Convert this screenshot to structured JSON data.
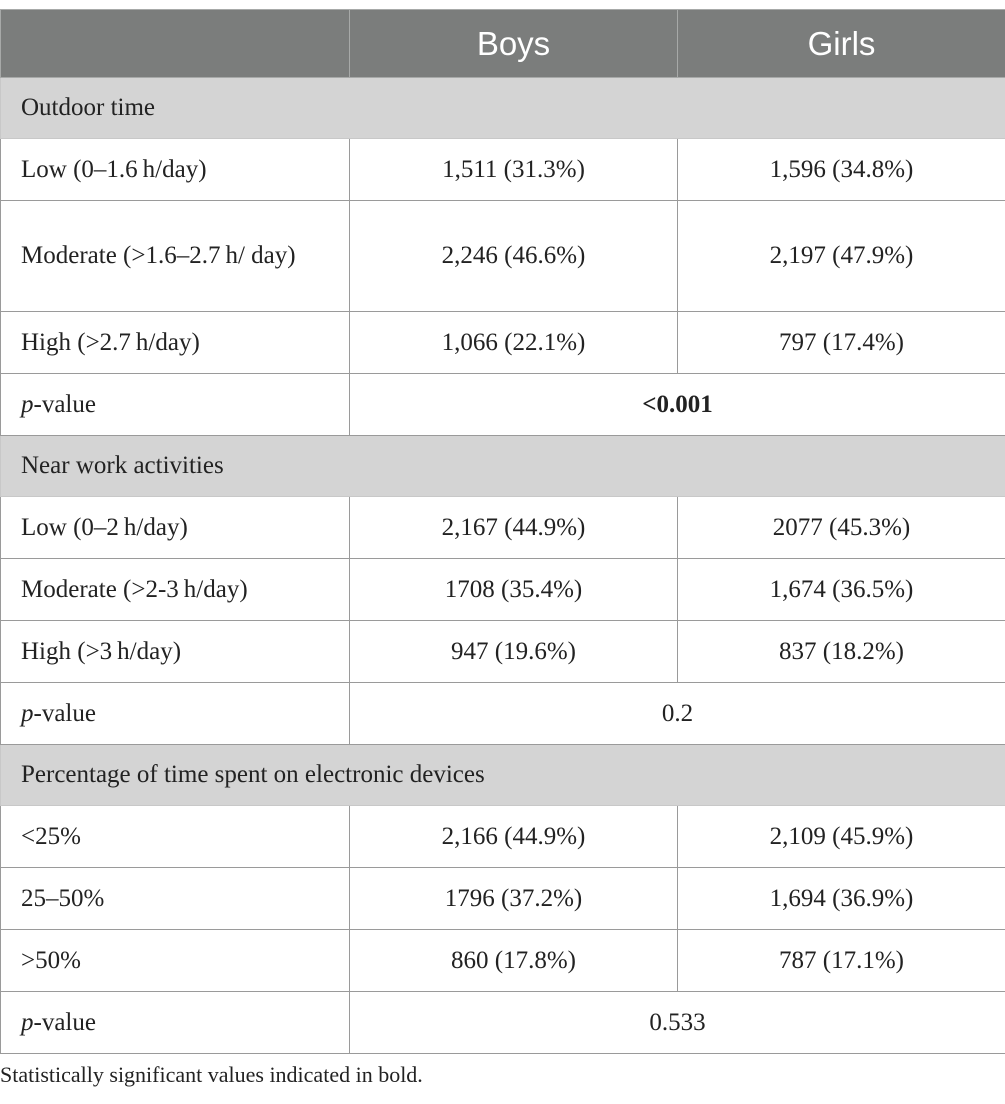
{
  "table": {
    "headers": [
      "",
      "Boys",
      "Girls"
    ],
    "sections": [
      {
        "title": "Outdoor time",
        "rows": [
          {
            "label": "Low (0–1.6 h/day)",
            "boys": "1,511 (31.3%)",
            "girls": "1,596 (34.8%)"
          },
          {
            "label": "Moderate (>1.6–2.7 h/ day)",
            "boys": "2,246 (46.6%)",
            "girls": "2,197 (47.9%)"
          },
          {
            "label": "High (>2.7 h/day)",
            "boys": "1,066 (22.1%)",
            "girls": "797 (17.4%)"
          }
        ],
        "p_value": {
          "label_italic": "p",
          "label_rest": "-value",
          "value": "<0.001",
          "bold": true
        }
      },
      {
        "title": "Near work activities",
        "rows": [
          {
            "label": "Low (0–2 h/day)",
            "boys": "2,167 (44.9%)",
            "girls": "2077 (45.3%)"
          },
          {
            "label": "Moderate (>2-3 h/day)",
            "boys": "1708 (35.4%)",
            "girls": "1,674 (36.5%)"
          },
          {
            "label": "High (>3 h/day)",
            "boys": "947 (19.6%)",
            "girls": "837 (18.2%)"
          }
        ],
        "p_value": {
          "label_italic": "p",
          "label_rest": "-value",
          "value": "0.2",
          "bold": false
        }
      },
      {
        "title": "Percentage of time spent on electronic devices",
        "rows": [
          {
            "label": "<25%",
            "boys": "2,166 (44.9%)",
            "girls": "2,109 (45.9%)"
          },
          {
            "label": "25–50%",
            "boys": "1796 (37.2%)",
            "girls": "1,694 (36.9%)"
          },
          {
            "label": ">50%",
            "boys": "860 (17.8%)",
            "girls": "787 (17.1%)"
          }
        ],
        "p_value": {
          "label_italic": "p",
          "label_rest": "-value",
          "value": "0.533",
          "bold": false
        }
      }
    ]
  },
  "footnote": "Statistically significant values indicated in bold.",
  "colors": {
    "header_bg": "#7b7d7c",
    "header_text": "#ffffff",
    "section_bg": "#d4d4d4",
    "border": "#9a9a9a"
  }
}
